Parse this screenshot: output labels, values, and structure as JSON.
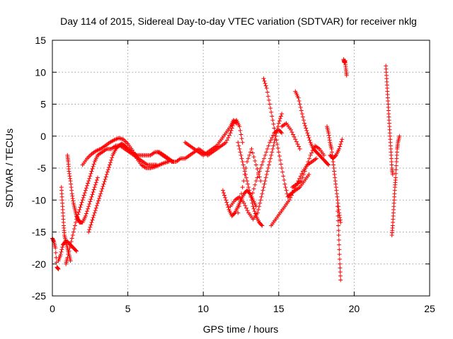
{
  "chart_data": {
    "type": "scatter",
    "title": "Day 114 of 2015, Sidereal Day-to-day VTEC variation (SDTVAR) for receiver nklg",
    "xlabel": "GPS time / hours",
    "ylabel": "SDTVAR / TECUs",
    "xlim": [
      0,
      25
    ],
    "ylim": [
      -25,
      15
    ],
    "xticks": [
      0,
      5,
      10,
      15,
      20,
      25
    ],
    "yticks": [
      -25,
      -20,
      -15,
      -10,
      -5,
      0,
      5,
      10,
      15
    ],
    "grid": true,
    "marker": "plus",
    "color": "#ff0000",
    "series": [
      {
        "values": [
          [
            0.0,
            -16.0
          ],
          [
            0.1,
            -16.5
          ],
          [
            0.2,
            -17.5
          ],
          [
            0.3,
            -20.5
          ],
          [
            0.4,
            -20.8
          ]
        ]
      },
      {
        "values": [
          [
            0.4,
            -19.5
          ],
          [
            0.55,
            -18.5
          ],
          [
            0.7,
            -17.0
          ],
          [
            0.85,
            -16.5
          ],
          [
            1.0,
            -16.5
          ],
          [
            1.2,
            -17.0
          ],
          [
            1.4,
            -17.5
          ],
          [
            1.6,
            -18.0
          ]
        ]
      },
      {
        "values": [
          [
            0.6,
            -8.0
          ],
          [
            0.65,
            -10.0
          ],
          [
            0.7,
            -12.0
          ],
          [
            0.75,
            -14.0
          ],
          [
            0.8,
            -15.5
          ],
          [
            0.9,
            -16.5
          ],
          [
            1.0,
            -17.5
          ],
          [
            1.1,
            -18.5
          ],
          [
            1.2,
            -19.5
          ]
        ]
      },
      {
        "values": [
          [
            1.0,
            -3.0
          ],
          [
            1.05,
            -4.0
          ],
          [
            1.1,
            -5.5
          ],
          [
            1.2,
            -7.0
          ],
          [
            1.3,
            -9.0
          ],
          [
            1.4,
            -10.5
          ],
          [
            1.5,
            -11.5
          ],
          [
            1.6,
            -12.5
          ],
          [
            1.7,
            -13.0
          ],
          [
            1.8,
            -13.5
          ],
          [
            2.0,
            -13.5
          ],
          [
            2.2,
            -12.5
          ],
          [
            2.4,
            -11.0
          ],
          [
            2.6,
            -9.5
          ],
          [
            2.8,
            -8.0
          ],
          [
            3.0,
            -6.5
          ]
        ]
      },
      {
        "values": [
          [
            0.9,
            -20.0
          ],
          [
            1.0,
            -19.0
          ],
          [
            1.2,
            -17.0
          ],
          [
            1.4,
            -15.0
          ],
          [
            1.6,
            -13.0
          ],
          [
            1.8,
            -11.5
          ],
          [
            2.0,
            -10.0
          ],
          [
            2.2,
            -8.5
          ],
          [
            2.4,
            -7.0
          ],
          [
            2.6,
            -5.5
          ],
          [
            2.8,
            -4.0
          ],
          [
            3.0,
            -3.0
          ],
          [
            3.3,
            -2.5
          ],
          [
            3.6,
            -2.0
          ],
          [
            3.9,
            -2.0
          ],
          [
            4.2,
            -1.5
          ],
          [
            4.5,
            -1.5
          ],
          [
            4.8,
            -2.0
          ],
          [
            5.1,
            -2.5
          ],
          [
            5.4,
            -3.0
          ],
          [
            5.7,
            -3.5
          ],
          [
            6.0,
            -4.0
          ],
          [
            6.3,
            -4.5
          ],
          [
            6.6,
            -4.5
          ],
          [
            6.9,
            -4.5
          ]
        ]
      },
      {
        "values": [
          [
            2.0,
            -4.5
          ],
          [
            2.3,
            -3.5
          ],
          [
            2.6,
            -2.8
          ],
          [
            2.9,
            -2.3
          ],
          [
            3.2,
            -2.0
          ],
          [
            3.5,
            -1.5
          ],
          [
            3.8,
            -1.0
          ],
          [
            4.1,
            -0.6
          ],
          [
            4.4,
            -0.3
          ],
          [
            4.7,
            -0.5
          ],
          [
            5.0,
            -1.2
          ],
          [
            5.3,
            -2.2
          ],
          [
            5.6,
            -3.5
          ],
          [
            5.9,
            -4.5
          ],
          [
            6.2,
            -5.0
          ],
          [
            6.5,
            -5.0
          ],
          [
            6.8,
            -4.8
          ],
          [
            7.1,
            -4.5
          ],
          [
            7.4,
            -4.2
          ],
          [
            7.7,
            -4.0
          ]
        ]
      },
      {
        "values": [
          [
            2.4,
            -15.0
          ],
          [
            2.6,
            -13.5
          ],
          [
            2.8,
            -12.0
          ],
          [
            3.0,
            -10.5
          ],
          [
            3.2,
            -9.0
          ],
          [
            3.4,
            -7.5
          ],
          [
            3.6,
            -6.0
          ],
          [
            3.8,
            -4.5
          ],
          [
            4.0,
            -3.0
          ],
          [
            4.2,
            -2.0
          ],
          [
            4.4,
            -1.5
          ],
          [
            4.6,
            -1.2
          ],
          [
            4.8,
            -1.5
          ],
          [
            5.0,
            -2.0
          ],
          [
            5.3,
            -2.5
          ],
          [
            5.6,
            -3.0
          ],
          [
            5.9,
            -3.0
          ],
          [
            6.2,
            -3.0
          ],
          [
            6.5,
            -3.0
          ],
          [
            6.8,
            -2.5
          ],
          [
            7.1,
            -2.5
          ],
          [
            7.4,
            -3.0
          ],
          [
            7.7,
            -3.5
          ],
          [
            8.0,
            -4.0
          ]
        ]
      },
      {
        "values": [
          [
            7.0,
            -2.5
          ],
          [
            7.3,
            -3.0
          ],
          [
            7.6,
            -3.5
          ],
          [
            7.9,
            -4.0
          ],
          [
            8.2,
            -4.0
          ],
          [
            8.5,
            -3.5
          ],
          [
            8.8,
            -3.5
          ],
          [
            9.1,
            -3.0
          ],
          [
            9.4,
            -2.5
          ],
          [
            9.7,
            -2.0
          ],
          [
            10.0,
            -2.5
          ],
          [
            10.3,
            -3.0
          ],
          [
            10.6,
            -2.5
          ],
          [
            10.9,
            -2.0
          ],
          [
            11.2,
            -1.5
          ],
          [
            11.5,
            -1.0
          ],
          [
            11.8,
            0.5
          ],
          [
            12.0,
            2.0
          ],
          [
            12.2,
            2.5
          ],
          [
            12.4,
            1.5
          ],
          [
            12.6,
            -1.0
          ]
        ]
      },
      {
        "values": [
          [
            8.8,
            -1.0
          ],
          [
            9.1,
            -1.5
          ],
          [
            9.4,
            -2.0
          ],
          [
            9.7,
            -2.5
          ],
          [
            10.0,
            -3.0
          ],
          [
            10.3,
            -2.5
          ],
          [
            10.6,
            -2.0
          ],
          [
            10.9,
            -1.5
          ],
          [
            11.2,
            -0.5
          ],
          [
            11.5,
            0.5
          ],
          [
            11.8,
            1.5
          ],
          [
            12.0,
            2.5
          ],
          [
            12.2,
            2.0
          ]
        ]
      },
      {
        "values": [
          [
            11.3,
            -8.5
          ],
          [
            11.5,
            -10.0
          ],
          [
            11.7,
            -11.5
          ],
          [
            11.9,
            -12.5
          ],
          [
            12.1,
            -12.0
          ],
          [
            12.3,
            -11.0
          ],
          [
            12.5,
            -10.0
          ],
          [
            12.7,
            -9.0
          ],
          [
            12.9,
            -8.5
          ],
          [
            13.1,
            -9.0
          ],
          [
            13.3,
            -10.0
          ],
          [
            13.5,
            -11.0
          ]
        ]
      },
      {
        "values": [
          [
            12.3,
            -1.0
          ],
          [
            12.5,
            -3.0
          ],
          [
            12.7,
            -5.0
          ],
          [
            12.9,
            -7.0
          ],
          [
            13.1,
            -9.0
          ],
          [
            13.3,
            -11.0
          ],
          [
            13.5,
            -12.5
          ],
          [
            13.7,
            -13.5
          ],
          [
            13.9,
            -14.0
          ]
        ]
      },
      {
        "values": [
          [
            11.8,
            -11.0
          ],
          [
            12.1,
            -10.0
          ],
          [
            12.4,
            -9.5
          ],
          [
            12.7,
            -10.5
          ],
          [
            13.0,
            -12.0
          ],
          [
            13.3,
            -13.0
          ],
          [
            13.6,
            -12.0
          ],
          [
            13.8,
            -10.0
          ],
          [
            14.0,
            -8.0
          ],
          [
            14.2,
            -6.0
          ],
          [
            14.4,
            -4.0
          ],
          [
            14.6,
            -2.0
          ],
          [
            14.8,
            0.0
          ],
          [
            15.0,
            2.0
          ],
          [
            15.2,
            3.5
          ]
        ]
      },
      {
        "values": [
          [
            12.3,
            -12.0
          ],
          [
            12.6,
            -8.0
          ],
          [
            12.9,
            -4.0
          ],
          [
            13.2,
            -2.0
          ],
          [
            13.5,
            -4.5
          ],
          [
            13.8,
            -7.0
          ]
        ]
      },
      {
        "values": [
          [
            13.2,
            -9.5
          ],
          [
            13.5,
            -7.0
          ],
          [
            13.8,
            -5.0
          ],
          [
            14.1,
            -3.0
          ],
          [
            14.4,
            -1.0
          ],
          [
            14.7,
            0.5
          ],
          [
            15.0,
            1.0
          ],
          [
            15.2,
            0.5
          ]
        ]
      },
      {
        "values": [
          [
            14.0,
            9.0
          ],
          [
            14.2,
            7.5
          ],
          [
            14.4,
            5.0
          ],
          [
            14.6,
            2.5
          ],
          [
            14.8,
            0.0
          ],
          [
            15.0,
            -2.5
          ],
          [
            15.2,
            -5.0
          ],
          [
            15.4,
            -7.5
          ],
          [
            15.6,
            -9.5
          ],
          [
            15.8,
            -9.0
          ],
          [
            16.1,
            -8.5
          ],
          [
            16.4,
            -8.0
          ],
          [
            16.7,
            -7.0
          ],
          [
            17.0,
            -6.0
          ]
        ]
      },
      {
        "values": [
          [
            14.5,
            -14.0
          ],
          [
            14.8,
            -13.0
          ],
          [
            15.1,
            -12.0
          ],
          [
            15.4,
            -11.0
          ],
          [
            15.7,
            -10.0
          ],
          [
            16.0,
            -8.5
          ],
          [
            16.3,
            -7.0
          ],
          [
            16.6,
            -5.5
          ],
          [
            16.9,
            -4.5
          ],
          [
            17.2,
            -4.0
          ],
          [
            17.5,
            -3.5
          ]
        ]
      },
      {
        "values": [
          [
            15.2,
            1.5
          ],
          [
            15.5,
            2.0
          ],
          [
            15.8,
            1.0
          ],
          [
            16.1,
            -0.5
          ],
          [
            16.4,
            -2.0
          ]
        ]
      },
      {
        "values": [
          [
            16.1,
            7.0
          ],
          [
            16.3,
            6.0
          ],
          [
            16.5,
            4.0
          ],
          [
            16.7,
            2.0
          ],
          [
            16.9,
            0.5
          ],
          [
            17.1,
            -1.0
          ],
          [
            17.3,
            -2.0
          ],
          [
            17.5,
            -2.5
          ],
          [
            17.7,
            -3.0
          ],
          [
            17.9,
            -3.5
          ],
          [
            18.1,
            -4.0
          ],
          [
            18.3,
            -4.5
          ]
        ]
      },
      {
        "values": [
          [
            15.9,
            -8.0
          ],
          [
            16.2,
            -7.5
          ],
          [
            16.5,
            -7.0
          ],
          [
            16.8,
            -5.0
          ],
          [
            17.1,
            -3.0
          ],
          [
            17.4,
            -1.5
          ],
          [
            17.7,
            -2.0
          ],
          [
            18.0,
            -3.0
          ]
        ]
      },
      {
        "values": [
          [
            18.2,
            1.5
          ],
          [
            18.3,
            0.5
          ],
          [
            18.4,
            -1.0
          ],
          [
            18.5,
            -2.0
          ],
          [
            18.6,
            -4.0
          ],
          [
            18.7,
            -6.0
          ],
          [
            18.8,
            -8.0
          ],
          [
            18.9,
            -10.0
          ],
          [
            19.0,
            -12.0
          ],
          [
            19.1,
            -13.5
          ]
        ]
      },
      {
        "values": [
          [
            18.4,
            -3.0
          ],
          [
            18.6,
            -3.5
          ],
          [
            18.8,
            -3.0
          ],
          [
            19.0,
            -2.0
          ],
          [
            19.2,
            -0.5
          ]
        ]
      },
      {
        "values": [
          [
            18.9,
            -11.0
          ],
          [
            18.95,
            -14.0
          ],
          [
            19.0,
            -17.0
          ],
          [
            19.05,
            -20.0
          ],
          [
            19.1,
            -22.5
          ]
        ]
      },
      {
        "values": [
          [
            19.3,
            12.0
          ],
          [
            19.35,
            11.5
          ],
          [
            19.4,
            11.8
          ],
          [
            19.45,
            10.5
          ],
          [
            19.5,
            9.5
          ]
        ]
      },
      {
        "values": [
          [
            22.1,
            11.0
          ],
          [
            22.15,
            9.0
          ],
          [
            22.2,
            7.0
          ],
          [
            22.25,
            5.0
          ],
          [
            22.3,
            3.0
          ],
          [
            22.35,
            1.0
          ],
          [
            22.4,
            -1.0
          ],
          [
            22.45,
            -3.0
          ],
          [
            22.5,
            -5.0
          ],
          [
            22.55,
            -6.0
          ]
        ]
      },
      {
        "values": [
          [
            22.5,
            -15.5
          ],
          [
            22.55,
            -14.0
          ],
          [
            22.6,
            -12.0
          ],
          [
            22.65,
            -10.0
          ],
          [
            22.7,
            -8.0
          ],
          [
            22.75,
            -6.5
          ],
          [
            22.8,
            -4.0
          ],
          [
            22.85,
            -2.0
          ],
          [
            22.9,
            -1.0
          ],
          [
            23.0,
            0.0
          ]
        ]
      }
    ]
  }
}
